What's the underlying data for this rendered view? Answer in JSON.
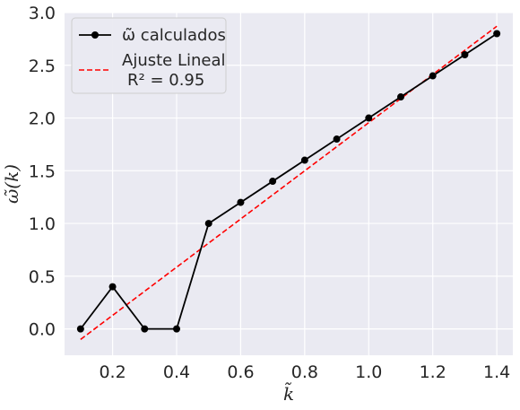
{
  "chart_data": {
    "type": "line",
    "xlabel": "k̃",
    "ylabel": "ω̃(k)",
    "xlim": [
      0.05,
      1.45
    ],
    "ylim": [
      -0.25,
      3.0
    ],
    "xticks": [
      "0.2",
      "0.4",
      "0.6",
      "0.8",
      "1.0",
      "1.2",
      "1.4"
    ],
    "yticks": [
      "0.0",
      "0.5",
      "1.0",
      "1.5",
      "2.0",
      "2.5",
      "3.0"
    ],
    "grid": true,
    "legend_position": "top-left",
    "series": [
      {
        "name": "ω̃ calculados",
        "style": "solid-with-markers",
        "color": "#000000",
        "x": [
          0.1,
          0.2,
          0.3,
          0.4,
          0.5,
          0.6,
          0.7,
          0.8,
          0.9,
          1.0,
          1.1,
          1.2,
          1.3,
          1.4
        ],
        "y": [
          0.0,
          0.4,
          0.0,
          0.0,
          1.0,
          1.2,
          1.4,
          1.6,
          1.8,
          2.0,
          2.2,
          2.4,
          2.6,
          2.8
        ]
      },
      {
        "name": "Ajuste Lineal",
        "name_line2": "R² = 0.95",
        "style": "dashed",
        "color": "#ff0000",
        "x": [
          0.1,
          1.4
        ],
        "y": [
          -0.1,
          2.87
        ]
      }
    ]
  }
}
